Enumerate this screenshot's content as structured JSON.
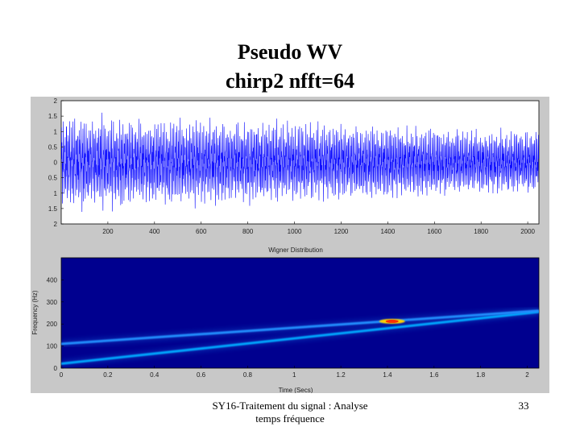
{
  "slide": {
    "title_line1": "Pseudo WV",
    "title_line2": "chirp2 nfft=64",
    "footer_line1": "SY16-Traitement du signal : Analyse",
    "footer_line2": "temps fréquence",
    "page_number": "33"
  },
  "chart_data": [
    {
      "type": "line",
      "title": "",
      "xlabel": "",
      "ylabel": "",
      "xlim": [
        0,
        2048
      ],
      "ylim": [
        -2,
        2
      ],
      "xticks": [
        200,
        400,
        600,
        800,
        1000,
        1200,
        1400,
        1600,
        1800,
        2000
      ],
      "xtick_labels": [
        "200",
        "400",
        "600",
        "800",
        "1000",
        "1200",
        "1400",
        "1600",
        "1800",
        "2000"
      ],
      "yticks": [
        2,
        1.5,
        1,
        0.5,
        0,
        -0.5,
        -1,
        -1.5,
        -2
      ],
      "ytick_labels": [
        "2",
        "1.5",
        "1",
        "0.5",
        "0",
        "0.5",
        "1",
        "1.5",
        "2"
      ],
      "series": [
        {
          "color": "#0000ff",
          "description": "dense oscillating signal, amplitude about 1.7 at start decreasing to about 1.1"
        }
      ],
      "grid": false
    },
    {
      "type": "heatmap",
      "title": "Wigner Distribution",
      "xlabel": "Time (Secs)",
      "ylabel": "Frequency (Hz)",
      "xlim": [
        0,
        2.05
      ],
      "ylim": [
        0,
        500
      ],
      "xticks": [
        0,
        0.2,
        0.4,
        0.6,
        0.8,
        1,
        1.2,
        1.4,
        1.6,
        1.8,
        2
      ],
      "xtick_labels": [
        "0",
        "0.2",
        "0.4",
        "0.6",
        "0.8",
        "1",
        "1.2",
        "1.4",
        "1.6",
        "1.8",
        "2"
      ],
      "yticks": [
        0,
        100,
        200,
        300,
        400
      ],
      "ytick_labels": [
        "0",
        "100",
        "200",
        "300",
        "400"
      ],
      "colormap": "jet",
      "background_color": "#00008f",
      "components": [
        {
          "kind": "constant",
          "x": [
            0,
            2.05
          ],
          "y": [
            215,
            215
          ],
          "color": "#00c8ff"
        },
        {
          "kind": "chirp",
          "x": [
            0,
            2.05
          ],
          "y": [
            20,
            255
          ],
          "color": "#00a8ff"
        },
        {
          "kind": "chirp",
          "x": [
            0,
            2.05
          ],
          "y": [
            110,
            260
          ],
          "color": "#2090ff"
        }
      ],
      "hotspot": {
        "x": 1.42,
        "y": 212,
        "color": "#ff3000"
      }
    }
  ]
}
